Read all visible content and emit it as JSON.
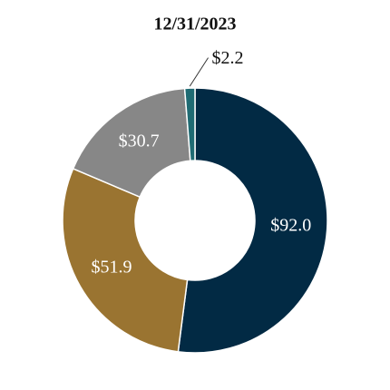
{
  "chart_data": {
    "type": "donut",
    "title": "12/31/2023",
    "categories": [
      null,
      null,
      null,
      null
    ],
    "values": [
      92.0,
      51.9,
      30.7,
      2.2
    ],
    "value_labels": [
      "$92.0",
      "$51.9",
      "$30.7",
      "$2.2"
    ],
    "colors": [
      "#022a44",
      "#9a7431",
      "#878787",
      "#1f6b73"
    ]
  }
}
